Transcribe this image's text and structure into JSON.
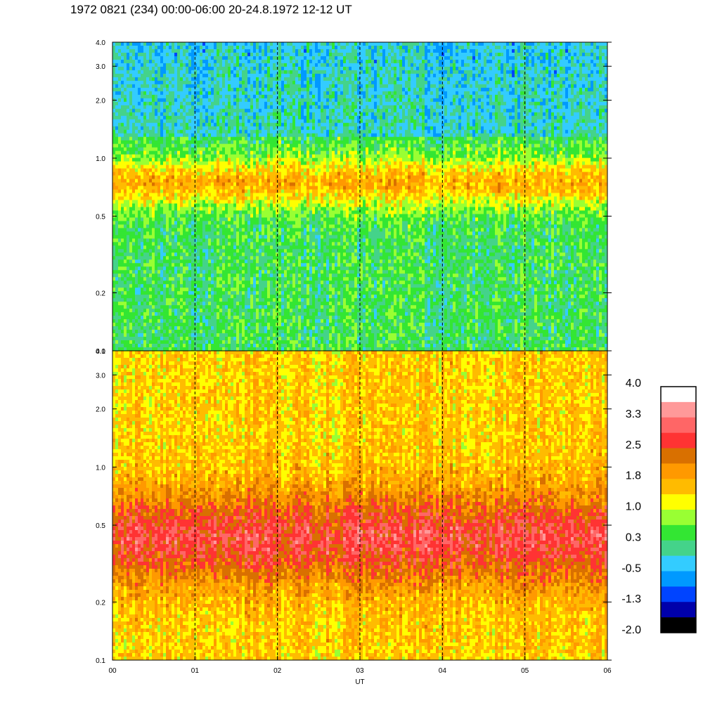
{
  "title": "1972 0821 (234) 00:00-06:00 20-24.8.1972  12-12 UT",
  "chart_data": {
    "type": "heatmap",
    "xlabel": "UT",
    "x_ticks": [
      "00",
      "01",
      "02",
      "03",
      "04",
      "05",
      "06"
    ],
    "x_range": [
      0,
      6
    ],
    "panels": [
      {
        "name": "top",
        "y_scale": "log",
        "y_range": [
          0.1,
          4.0
        ],
        "y_ticks": [
          {
            "value": 4.0,
            "label": "4.0"
          },
          {
            "value": 3.0,
            "label": "3.0"
          },
          {
            "value": 2.0,
            "label": "2.0"
          },
          {
            "value": 1.0,
            "label": "1.0"
          },
          {
            "value": 0.5,
            "label": "0.5"
          },
          {
            "value": 0.2,
            "label": "0.2"
          },
          {
            "value": 0.1,
            "label": "0.1"
          }
        ],
        "typical_value_range": [
          -0.5,
          1.8
        ]
      },
      {
        "name": "bottom",
        "y_scale": "log",
        "y_range": [
          0.1,
          4.0
        ],
        "y_ticks": [
          {
            "value": 4.0,
            "label": "4.0"
          },
          {
            "value": 3.0,
            "label": "3.0"
          },
          {
            "value": 2.0,
            "label": "2.0"
          },
          {
            "value": 1.0,
            "label": "1.0"
          },
          {
            "value": 0.5,
            "label": "0.5"
          },
          {
            "value": 0.2,
            "label": "0.2"
          },
          {
            "value": 0.1,
            "label": "0.1"
          }
        ],
        "typical_value_range": [
          0.6,
          3.0
        ]
      }
    ],
    "hour_markers": [
      1,
      2,
      3,
      4,
      5
    ],
    "colorbar": {
      "labels": [
        "4.0",
        "3.3",
        "2.5",
        "1.8",
        "1.0",
        "0.3",
        "-0.5",
        "-1.3",
        "-2.0"
      ],
      "range": [
        -2.0,
        4.0
      ],
      "colors": [
        "#ffffff",
        "#ff9999",
        "#ff6666",
        "#ff3333",
        "#d97000",
        "#ff9900",
        "#ffbb00",
        "#ffff00",
        "#99ff33",
        "#33e633",
        "#44d38a",
        "#33ccff",
        "#0099ff",
        "#0044ff",
        "#0000aa",
        "#000000"
      ]
    }
  }
}
